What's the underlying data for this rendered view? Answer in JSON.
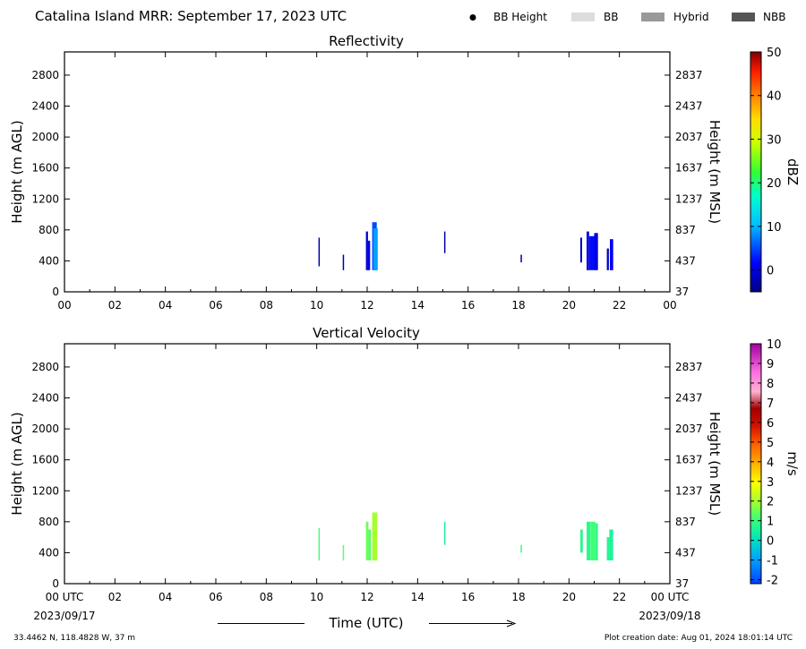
{
  "header": {
    "title": "Catalina Island MRR:  September 17, 2023 UTC",
    "legend": [
      {
        "label": "BB Height",
        "kind": "dot",
        "color": "#000000"
      },
      {
        "label": "BB",
        "kind": "swatch",
        "color": "#dddddd"
      },
      {
        "label": "Hybrid",
        "kind": "swatch",
        "color": "#999999"
      },
      {
        "label": "NBB",
        "kind": "swatch",
        "color": "#555555"
      }
    ]
  },
  "footer": {
    "start_date": "2023/09/17",
    "end_date": "2023/09/18",
    "time_label": "Time (UTC)",
    "location": "33.4462 N, 118.4828 W, 37 m",
    "creation": "Plot creation date: Aug 01, 2024 18:01:14 UTC"
  },
  "chart_data": [
    {
      "type": "heatmap",
      "title": "Reflectivity",
      "ylabel": "Height (m AGL)",
      "ylabel_right": "Height (m MSL)",
      "xlim": [
        0,
        24
      ],
      "ylim": [
        0,
        3100
      ],
      "x_ticks": [
        "00",
        "02",
        "04",
        "06",
        "08",
        "10",
        "12",
        "14",
        "16",
        "18",
        "20",
        "22",
        "00"
      ],
      "y_ticks_left": [
        "0",
        "400",
        "800",
        "1200",
        "1600",
        "2000",
        "2400",
        "2800"
      ],
      "y_ticks_right": [
        "37",
        "437",
        "837",
        "1237",
        "1637",
        "2037",
        "2437",
        "2837"
      ],
      "colorbar": {
        "label": "dBZ",
        "min": -5,
        "max": 50,
        "ticks": [
          "0",
          "10",
          "20",
          "30",
          "40",
          "50"
        ],
        "tick_values": [
          0,
          10,
          20,
          30,
          40,
          50
        ]
      },
      "echoes": [
        {
          "x0": 10.07,
          "x1": 10.12,
          "y0": 330,
          "y1": 700,
          "v": -3
        },
        {
          "x0": 11.03,
          "x1": 11.08,
          "y0": 280,
          "y1": 480,
          "v": -3
        },
        {
          "x0": 11.95,
          "x1": 12.03,
          "y0": 280,
          "y1": 780,
          "v": -1
        },
        {
          "x0": 12.03,
          "x1": 12.12,
          "y0": 280,
          "y1": 660,
          "v": 1
        },
        {
          "x0": 12.2,
          "x1": 12.38,
          "y0": 280,
          "y1": 900,
          "v": 5
        },
        {
          "x0": 12.25,
          "x1": 12.42,
          "y0": 280,
          "y1": 820,
          "v": 9
        },
        {
          "x0": 15.05,
          "x1": 15.1,
          "y0": 500,
          "y1": 780,
          "v": -3
        },
        {
          "x0": 18.08,
          "x1": 18.12,
          "y0": 380,
          "y1": 480,
          "v": -2
        },
        {
          "x0": 20.45,
          "x1": 20.52,
          "y0": 380,
          "y1": 700,
          "v": -2
        },
        {
          "x0": 20.7,
          "x1": 20.8,
          "y0": 280,
          "y1": 780,
          "v": 0
        },
        {
          "x0": 20.8,
          "x1": 21.0,
          "y0": 280,
          "y1": 720,
          "v": 2
        },
        {
          "x0": 21.0,
          "x1": 21.15,
          "y0": 280,
          "y1": 760,
          "v": 0
        },
        {
          "x0": 21.5,
          "x1": 21.58,
          "y0": 280,
          "y1": 560,
          "v": -1
        },
        {
          "x0": 21.62,
          "x1": 21.75,
          "y0": 280,
          "y1": 680,
          "v": 1
        }
      ]
    },
    {
      "type": "heatmap",
      "title": "Vertical Velocity",
      "ylabel": "Height (m AGL)",
      "ylabel_right": "Height (m MSL)",
      "xlim": [
        0,
        24
      ],
      "ylim": [
        0,
        3100
      ],
      "x_ticks": [
        "00 UTC",
        "02",
        "04",
        "06",
        "08",
        "10",
        "12",
        "14",
        "16",
        "18",
        "20",
        "22",
        "00 UTC"
      ],
      "y_ticks_left": [
        "0",
        "400",
        "800",
        "1200",
        "1600",
        "2000",
        "2400",
        "2800"
      ],
      "y_ticks_right": [
        "37",
        "437",
        "837",
        "1237",
        "1637",
        "2037",
        "2437",
        "2837"
      ],
      "colorbar": {
        "label": "m/s",
        "min": -2.2,
        "max": 10,
        "ticks": [
          "-2",
          "-1",
          "0",
          "1",
          "2",
          "3",
          "4",
          "5",
          "6",
          "7",
          "8",
          "9",
          "10"
        ],
        "tick_values": [
          -2,
          -1,
          0,
          1,
          2,
          3,
          4,
          5,
          6,
          7,
          8,
          9,
          10
        ]
      },
      "echoes": [
        {
          "x0": 10.07,
          "x1": 10.12,
          "y0": 300,
          "y1": 720,
          "v": 1.2
        },
        {
          "x0": 11.03,
          "x1": 11.08,
          "y0": 300,
          "y1": 500,
          "v": 1.4
        },
        {
          "x0": 11.95,
          "x1": 12.05,
          "y0": 300,
          "y1": 800,
          "v": 1.5
        },
        {
          "x0": 12.05,
          "x1": 12.15,
          "y0": 300,
          "y1": 700,
          "v": 1.3
        },
        {
          "x0": 12.2,
          "x1": 12.4,
          "y0": 300,
          "y1": 920,
          "v": 2.0
        },
        {
          "x0": 15.05,
          "x1": 15.1,
          "y0": 500,
          "y1": 800,
          "v": 0.5
        },
        {
          "x0": 18.08,
          "x1": 18.12,
          "y0": 400,
          "y1": 500,
          "v": 1.0
        },
        {
          "x0": 20.45,
          "x1": 20.55,
          "y0": 400,
          "y1": 700,
          "v": 0.8
        },
        {
          "x0": 20.7,
          "x1": 20.85,
          "y0": 300,
          "y1": 800,
          "v": 0.8
        },
        {
          "x0": 20.85,
          "x1": 21.05,
          "y0": 300,
          "y1": 800,
          "v": 1.1
        },
        {
          "x0": 21.05,
          "x1": 21.15,
          "y0": 300,
          "y1": 780,
          "v": 0.9
        },
        {
          "x0": 21.5,
          "x1": 21.6,
          "y0": 300,
          "y1": 600,
          "v": 0.7
        },
        {
          "x0": 21.6,
          "x1": 21.75,
          "y0": 300,
          "y1": 700,
          "v": 0.6
        }
      ]
    }
  ]
}
